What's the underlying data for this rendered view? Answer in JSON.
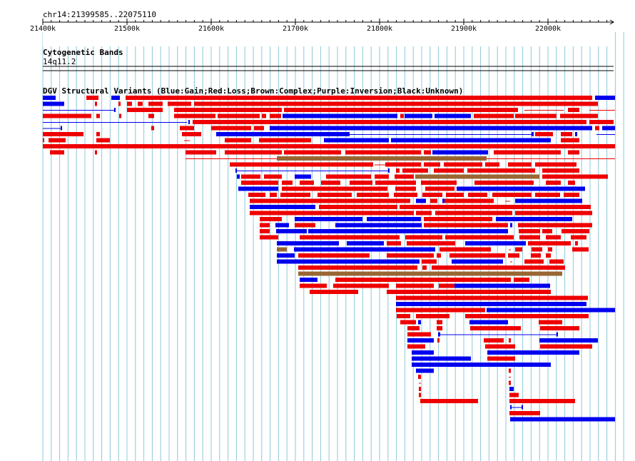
{
  "ruler": {
    "position": "chr14:21399585..22075110",
    "ticks": [
      "21400k",
      "21500k",
      "21600k",
      "21700k",
      "21800k",
      "21900k",
      "22000k"
    ]
  },
  "tracks": {
    "cytoband": {
      "title": "Cytogenetic Bands",
      "band": "14q11.2"
    },
    "dgv": {
      "title": "DGV Structural Variants (Blue:Gain;Red:Loss;Brown:Complex;Purple:Inversion;Black:Unknown)"
    }
  },
  "colors": {
    "gain": "#0000ee",
    "loss": "#ee0000",
    "complex": "#996633",
    "grid": "#8cc8d8"
  }
}
